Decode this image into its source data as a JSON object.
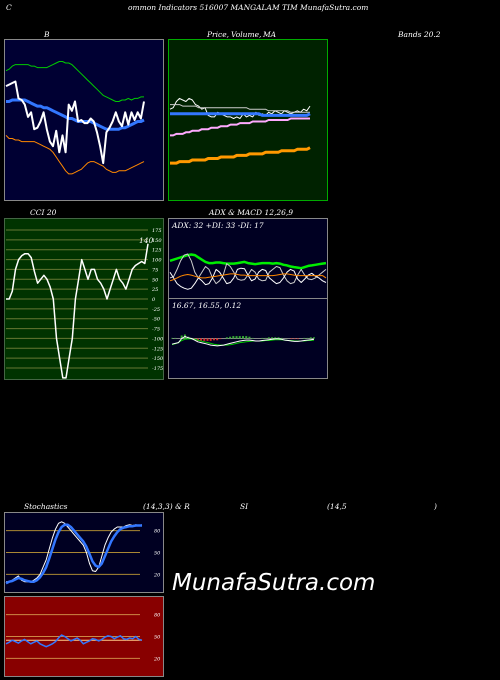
{
  "header": {
    "c": "C",
    "title": "ommon  Indicators 516007 MANGALAM TIM MunafaSutra.com"
  },
  "labels": {
    "bb": "B",
    "pv1": "Price,",
    "pv2": "Volume,",
    "pv3": "MA",
    "bands": "Bands 20.2",
    "cci": "CCI 20",
    "adx": "ADX  & MACD 12,26,9",
    "adx_vals": "ADX: 32  +DI: 33 -DI: 17",
    "macd_vals": "16.67,  16.55,  0.12",
    "stoch": "Stochastics",
    "stoch_params": "(14,3,3) & R",
    "rsi1": "SI",
    "rsi2": "(14,5",
    "rsi3": ")",
    "cci_value": "140"
  },
  "watermark": "MunafaSutra.com",
  "colors": {
    "bg": "#000000",
    "bb_panel": "#000033",
    "price_panel": "#002200",
    "cci_panel": "#003300",
    "adx_panel": "#000022",
    "stoch_panel": "#000022",
    "rsi_panel": "#880000",
    "white": "#ffffff",
    "blue": "#3377ff",
    "green": "#00cc00",
    "orange": "#ff8800",
    "gray": "#999999",
    "pink": "#ffaaff",
    "red": "#ff3333"
  },
  "chart_data": [
    {
      "type": "line",
      "name": "bollinger",
      "ylim": [
        0,
        100
      ],
      "series": [
        {
          "name": "upper",
          "color": "#00cc00",
          "values": [
            82,
            83,
            85,
            86,
            86,
            86,
            86,
            86,
            85,
            85,
            84,
            84,
            84,
            84,
            85,
            86,
            87,
            88,
            88,
            87,
            87,
            86,
            84,
            82,
            80,
            78,
            76,
            74,
            72,
            70,
            68,
            66,
            65,
            64,
            63,
            62,
            62,
            63,
            63,
            64,
            63,
            64,
            64,
            65,
            65
          ]
        },
        {
          "name": "middle",
          "color": "#3377ff",
          "values": [
            62,
            62,
            63,
            63,
            63,
            63,
            63,
            62,
            61,
            60,
            59,
            59,
            58,
            58,
            57,
            56,
            55,
            54,
            53,
            52,
            51,
            51,
            50,
            49,
            49,
            49,
            49,
            49,
            48,
            47,
            46,
            45,
            44,
            44,
            44,
            44,
            44,
            45,
            45,
            46,
            47,
            48,
            49,
            49,
            50
          ]
        },
        {
          "name": "lower",
          "color": "#ff8800",
          "values": [
            40,
            38,
            38,
            37,
            37,
            36,
            36,
            36,
            36,
            36,
            35,
            34,
            33,
            32,
            31,
            29,
            26,
            23,
            20,
            17,
            15,
            15,
            16,
            17,
            18,
            20,
            22,
            23,
            23,
            22,
            21,
            20,
            18,
            17,
            16,
            16,
            17,
            17,
            17,
            18,
            19,
            20,
            21,
            22,
            23
          ]
        },
        {
          "name": "price",
          "color": "#ffffff",
          "values": [
            72,
            73,
            74,
            75,
            64,
            63,
            60,
            52,
            55,
            44,
            45,
            49,
            55,
            44,
            36,
            33,
            43,
            29,
            40,
            29,
            60,
            56,
            62,
            49,
            50,
            48,
            48,
            51,
            49,
            42,
            33,
            22,
            42,
            45,
            49,
            55,
            49,
            46,
            55,
            47,
            55,
            50,
            55,
            51,
            62
          ]
        }
      ]
    },
    {
      "type": "line",
      "name": "price-volume-ma",
      "ylim": [
        0,
        100
      ],
      "series": [
        {
          "name": "price",
          "color": "#ffffff",
          "values": [
            57,
            58,
            62,
            64,
            63,
            62,
            64,
            63,
            60,
            59,
            57,
            58,
            53,
            52,
            52,
            55,
            54,
            53,
            52,
            52,
            51,
            52,
            51,
            54,
            52,
            53,
            52,
            55,
            53,
            54,
            53,
            55,
            54,
            56,
            55,
            54,
            56,
            55,
            54,
            55,
            56,
            55,
            57,
            56,
            59
          ]
        },
        {
          "name": "ma-a",
          "color": "#cccccc",
          "values": [
            60,
            60,
            60,
            60,
            59,
            59,
            59,
            59,
            59,
            58,
            58,
            58,
            58,
            58,
            58,
            58,
            58,
            58,
            58,
            58,
            58,
            58,
            58,
            58,
            58,
            57,
            57,
            57,
            57,
            57,
            57,
            56,
            56,
            56,
            56,
            56,
            56,
            56,
            55,
            55,
            55,
            55,
            55,
            55,
            55
          ]
        },
        {
          "name": "ma-b",
          "color": "#3377ff",
          "values": [
            54,
            54,
            54,
            54,
            54,
            54,
            54,
            54,
            54,
            54,
            54,
            54,
            54,
            54,
            54,
            54,
            54,
            54,
            54,
            54,
            54,
            54,
            54,
            54,
            54,
            54,
            54,
            54,
            54,
            53,
            53,
            53,
            53,
            53,
            53,
            53,
            53,
            53,
            53,
            53,
            53,
            53,
            53,
            53,
            54
          ]
        },
        {
          "name": "ma-c",
          "color": "#ffaaff",
          "values": [
            40,
            40,
            41,
            41,
            41,
            42,
            42,
            43,
            43,
            43,
            44,
            44,
            44,
            45,
            45,
            45,
            46,
            46,
            46,
            47,
            47,
            47,
            48,
            48,
            48,
            48,
            49,
            49,
            49,
            49,
            49,
            50,
            50,
            50,
            50,
            50,
            50,
            50,
            51,
            51,
            51,
            51,
            51,
            51,
            51
          ]
        },
        {
          "name": "ma-d",
          "color": "#ff9900",
          "values": [
            22,
            22,
            22,
            23,
            23,
            23,
            23,
            24,
            24,
            24,
            24,
            24,
            25,
            25,
            25,
            25,
            26,
            26,
            26,
            26,
            26,
            27,
            27,
            27,
            27,
            28,
            28,
            28,
            28,
            28,
            29,
            29,
            29,
            29,
            29,
            30,
            30,
            30,
            30,
            30,
            31,
            31,
            31,
            31,
            32
          ]
        }
      ]
    },
    {
      "type": "line",
      "name": "cci",
      "ylim": [
        -175,
        175
      ],
      "yticks": [
        "175",
        "150",
        "125",
        "100",
        "75",
        "50",
        "25",
        "0",
        "-25",
        "-50",
        "-75",
        "-100",
        "-125",
        "-150",
        "-175"
      ],
      "series": [
        {
          "name": "cci",
          "color": "#ffffff",
          "values": [
            0,
            0,
            20,
            75,
            100,
            110,
            115,
            115,
            105,
            70,
            40,
            50,
            60,
            50,
            30,
            0,
            -100,
            -150,
            -200,
            -200,
            -150,
            -100,
            0,
            50,
            100,
            75,
            50,
            75,
            75,
            50,
            40,
            25,
            0,
            25,
            50,
            75,
            50,
            40,
            25,
            50,
            75,
            85,
            90,
            95,
            90,
            140
          ]
        }
      ]
    },
    {
      "type": "line",
      "name": "adx",
      "ylim": [
        0,
        100
      ],
      "series": [
        {
          "name": "adx",
          "color": "#00ee00",
          "values": [
            60,
            62,
            64,
            66,
            68,
            70,
            71,
            70,
            66,
            62,
            58,
            56,
            56,
            57,
            57,
            56,
            55,
            55,
            55,
            56,
            57,
            58,
            56,
            55,
            54,
            55,
            56,
            56,
            56,
            55,
            56,
            55,
            53,
            52,
            50,
            49,
            48,
            47,
            49,
            51,
            52,
            53,
            54,
            55,
            56
          ]
        },
        {
          "name": "+di",
          "color": "#cccccc",
          "values": [
            30,
            32,
            45,
            60,
            70,
            72,
            60,
            40,
            30,
            40,
            50,
            45,
            30,
            20,
            25,
            35,
            55,
            50,
            40,
            28,
            26,
            27,
            35,
            45,
            40,
            28,
            25,
            26,
            40,
            45,
            50,
            48,
            35,
            25,
            20,
            22,
            35,
            45,
            35,
            28,
            27,
            30,
            35,
            40,
            45
          ]
        },
        {
          "name": "-di",
          "color": "#ffffff",
          "values": [
            40,
            30,
            20,
            15,
            12,
            10,
            12,
            20,
            30,
            25,
            18,
            20,
            30,
            45,
            40,
            30,
            20,
            22,
            30,
            45,
            47,
            46,
            35,
            25,
            28,
            40,
            45,
            43,
            30,
            25,
            20,
            22,
            30,
            40,
            45,
            42,
            28,
            22,
            28,
            35,
            38,
            33,
            30,
            25,
            22
          ]
        },
        {
          "name": "orange",
          "color": "#ff8800",
          "values": [
            25,
            27,
            30,
            33,
            35,
            36,
            35,
            33,
            31,
            30,
            30,
            31,
            32,
            33,
            34,
            35,
            36,
            37,
            37,
            36,
            35,
            35,
            34,
            34,
            34,
            34,
            34,
            34,
            34,
            34,
            35,
            36,
            37,
            37,
            36,
            35,
            34,
            34,
            34,
            34,
            34,
            34,
            34,
            34,
            30
          ]
        }
      ]
    },
    {
      "type": "line",
      "name": "macd",
      "ylim": [
        0,
        100
      ],
      "series": [
        {
          "name": "macd",
          "color": "#ffffff",
          "values": [
            36,
            38,
            40,
            50,
            55,
            52,
            50,
            46,
            42,
            40,
            38,
            36,
            34,
            33,
            32,
            33,
            34,
            36,
            38,
            40,
            42,
            44,
            45,
            46,
            46,
            45,
            44,
            44,
            45,
            46,
            47,
            48,
            49,
            49,
            48,
            46,
            45,
            44,
            43,
            43,
            44,
            45,
            46,
            47,
            48
          ]
        },
        {
          "name": "signal",
          "color": "#00cc00",
          "values": [
            35,
            37,
            40,
            45,
            48,
            49,
            49,
            48,
            46,
            44,
            42,
            40,
            38,
            36,
            35,
            34,
            34,
            34,
            35,
            36,
            38,
            40,
            41,
            42,
            43,
            44,
            44,
            44,
            44,
            45,
            45,
            46,
            47,
            47,
            47,
            46,
            45,
            45,
            44,
            44,
            44,
            44,
            45,
            45,
            46
          ]
        }
      ]
    },
    {
      "type": "line",
      "name": "stochastics",
      "ylim": [
        0,
        100
      ],
      "yticks": [
        "80",
        "50",
        "20"
      ],
      "series": [
        {
          "name": "%k",
          "color": "#ffffff",
          "values": [
            10,
            10,
            12,
            15,
            18,
            12,
            10,
            10,
            10,
            12,
            15,
            20,
            30,
            40,
            55,
            70,
            82,
            90,
            92,
            90,
            85,
            80,
            75,
            70,
            65,
            60,
            50,
            35,
            25,
            24,
            30,
            45,
            60,
            70,
            78,
            82,
            85,
            85,
            85,
            87,
            88,
            87,
            88,
            87,
            88
          ]
        },
        {
          "name": "%d",
          "color": "#3377ff",
          "values": [
            8,
            10,
            11,
            13,
            15,
            14,
            12,
            11,
            10,
            10,
            12,
            16,
            22,
            30,
            42,
            55,
            68,
            78,
            85,
            88,
            88,
            85,
            80,
            75,
            70,
            65,
            58,
            48,
            38,
            32,
            30,
            35,
            45,
            55,
            65,
            72,
            78,
            82,
            84,
            85,
            86,
            86,
            87,
            87,
            87
          ]
        }
      ]
    },
    {
      "type": "line",
      "name": "rsi",
      "ylim": [
        0,
        100
      ],
      "yticks": [
        "80",
        "50",
        "20"
      ],
      "series": [
        {
          "name": "rsi",
          "color": "#3377ff",
          "values": [
            40,
            42,
            45,
            43,
            41,
            44,
            46,
            43,
            40,
            42,
            44,
            40,
            38,
            36,
            38,
            40,
            43,
            48,
            52,
            50,
            47,
            44,
            46,
            48,
            45,
            40,
            42,
            44,
            47,
            46,
            44,
            46,
            49,
            51,
            50,
            47,
            49,
            51,
            47,
            46,
            48,
            47,
            50,
            46,
            45
          ]
        },
        {
          "name": "mrsi",
          "color": "#ffcc88",
          "values": [
            45,
            45,
            45,
            45,
            45,
            45,
            45,
            45,
            45,
            45,
            45,
            45,
            45,
            45,
            45,
            45,
            45,
            45,
            45,
            45,
            45,
            45,
            45,
            45,
            45,
            45,
            45,
            45,
            45,
            45,
            45,
            45,
            45,
            45,
            45,
            45,
            45,
            45,
            45,
            45,
            45,
            45,
            45,
            45,
            45
          ]
        }
      ]
    }
  ]
}
